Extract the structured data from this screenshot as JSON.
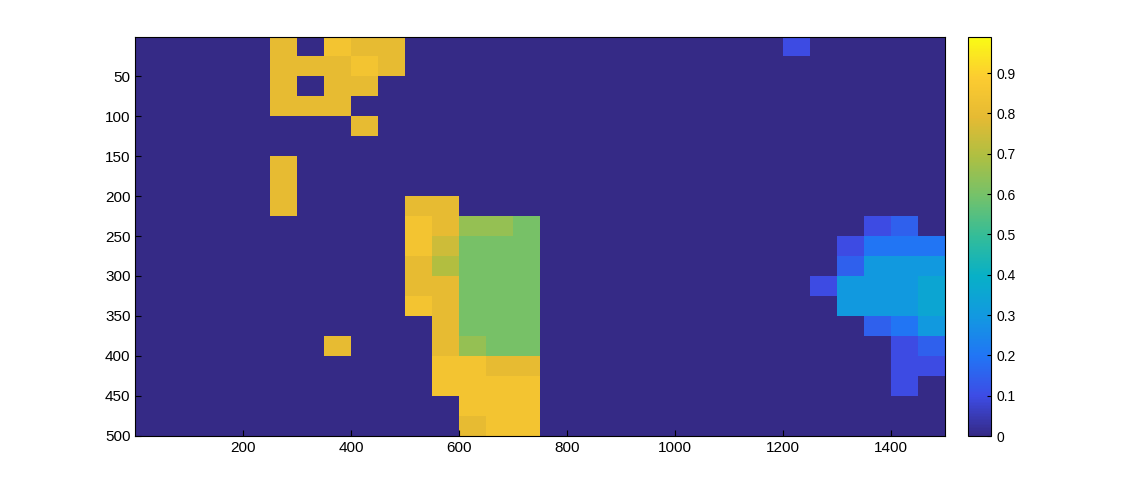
{
  "chart_data": {
    "type": "heatmap",
    "xlim": [
      0.5,
      1500.5
    ],
    "ylim": [
      500.5,
      0.5
    ],
    "xticks": [
      200,
      400,
      600,
      800,
      1000,
      1200,
      1400
    ],
    "yticks": [
      50,
      100,
      150,
      200,
      250,
      300,
      350,
      400,
      450,
      500
    ],
    "colorbar_range": [
      0,
      0.99
    ],
    "colorbar_ticks": [
      0,
      0.1,
      0.2,
      0.3,
      0.4,
      0.5,
      0.6,
      0.7,
      0.8,
      0.9
    ],
    "cells": [
      [
        0,
        0,
        0,
        0,
        0,
        0.8,
        0,
        0.85,
        0.8,
        0.8,
        0,
        0,
        0,
        0,
        0,
        0,
        0,
        0,
        0,
        0,
        0,
        0,
        0,
        0,
        0.1,
        0,
        0,
        0,
        0,
        0
      ],
      [
        0,
        0,
        0,
        0,
        0,
        0.8,
        0.8,
        0.8,
        0.85,
        0.8,
        0,
        0,
        0,
        0,
        0,
        0,
        0,
        0,
        0,
        0,
        0,
        0,
        0,
        0,
        0,
        0,
        0,
        0,
        0,
        0
      ],
      [
        0,
        0,
        0,
        0,
        0,
        0.8,
        0,
        0.8,
        0.8,
        0,
        0,
        0,
        0,
        0,
        0,
        0,
        0,
        0,
        0,
        0,
        0,
        0,
        0,
        0,
        0,
        0,
        0,
        0,
        0,
        0
      ],
      [
        0,
        0,
        0,
        0,
        0,
        0.8,
        0.8,
        0.8,
        0,
        0,
        0,
        0,
        0,
        0,
        0,
        0,
        0,
        0,
        0,
        0,
        0,
        0,
        0,
        0,
        0,
        0,
        0,
        0,
        0,
        0
      ],
      [
        0,
        0,
        0,
        0,
        0,
        0,
        0,
        0,
        0.8,
        0,
        0,
        0,
        0,
        0,
        0,
        0,
        0,
        0,
        0,
        0,
        0,
        0,
        0,
        0,
        0,
        0,
        0,
        0,
        0,
        0
      ],
      [
        0,
        0,
        0,
        0,
        0,
        0,
        0,
        0,
        0,
        0,
        0,
        0,
        0,
        0,
        0,
        0,
        0,
        0,
        0,
        0,
        0,
        0,
        0,
        0,
        0,
        0,
        0,
        0,
        0,
        0
      ],
      [
        0,
        0,
        0,
        0,
        0,
        0.8,
        0,
        0,
        0,
        0,
        0,
        0,
        0,
        0,
        0,
        0,
        0,
        0,
        0,
        0,
        0,
        0,
        0,
        0,
        0,
        0,
        0,
        0,
        0,
        0
      ],
      [
        0,
        0,
        0,
        0,
        0,
        0.8,
        0,
        0,
        0,
        0,
        0,
        0,
        0,
        0,
        0,
        0,
        0,
        0,
        0,
        0,
        0,
        0,
        0,
        0,
        0,
        0,
        0,
        0,
        0,
        0
      ],
      [
        0,
        0,
        0,
        0,
        0,
        0.8,
        0,
        0,
        0,
        0,
        0.8,
        0.8,
        0,
        0,
        0,
        0,
        0,
        0,
        0,
        0,
        0,
        0,
        0,
        0,
        0,
        0,
        0,
        0,
        0,
        0
      ],
      [
        0,
        0,
        0,
        0,
        0,
        0,
        0,
        0,
        0,
        0,
        0.85,
        0.8,
        0.65,
        0.65,
        0.6,
        0,
        0,
        0,
        0,
        0,
        0,
        0,
        0,
        0,
        0,
        0,
        0,
        0.1,
        0.15,
        0
      ],
      [
        0,
        0,
        0,
        0,
        0,
        0,
        0,
        0,
        0,
        0,
        0.85,
        0.75,
        0.6,
        0.6,
        0.6,
        0,
        0,
        0,
        0,
        0,
        0,
        0,
        0,
        0,
        0,
        0,
        0.1,
        0.2,
        0.2,
        0.2
      ],
      [
        0,
        0,
        0,
        0,
        0,
        0,
        0,
        0,
        0,
        0,
        0.8,
        0.7,
        0.6,
        0.6,
        0.6,
        0,
        0,
        0,
        0,
        0,
        0,
        0,
        0,
        0,
        0,
        0,
        0.15,
        0.3,
        0.3,
        0.3
      ],
      [
        0,
        0,
        0,
        0,
        0,
        0,
        0,
        0,
        0,
        0,
        0.8,
        0.8,
        0.6,
        0.6,
        0.6,
        0,
        0,
        0,
        0,
        0,
        0,
        0,
        0,
        0,
        0,
        0.1,
        0.3,
        0.3,
        0.3,
        0.35
      ],
      [
        0,
        0,
        0,
        0,
        0,
        0,
        0,
        0,
        0,
        0,
        0.85,
        0.8,
        0.6,
        0.6,
        0.6,
        0,
        0,
        0,
        0,
        0,
        0,
        0,
        0,
        0,
        0,
        0,
        0.3,
        0.3,
        0.3,
        0.35
      ],
      [
        0,
        0,
        0,
        0,
        0,
        0,
        0,
        0,
        0,
        0,
        0,
        0.8,
        0.6,
        0.6,
        0.6,
        0,
        0,
        0,
        0,
        0,
        0,
        0,
        0,
        0,
        0,
        0,
        0,
        0.15,
        0.2,
        0.3
      ],
      [
        0,
        0,
        0,
        0,
        0,
        0,
        0,
        0.8,
        0,
        0,
        0,
        0.8,
        0.65,
        0.6,
        0.6,
        0,
        0,
        0,
        0,
        0,
        0,
        0,
        0,
        0,
        0,
        0,
        0,
        0,
        0.1,
        0.15
      ],
      [
        0,
        0,
        0,
        0,
        0,
        0,
        0,
        0,
        0,
        0,
        0,
        0.85,
        0.85,
        0.8,
        0.8,
        0,
        0,
        0,
        0,
        0,
        0,
        0,
        0,
        0,
        0,
        0,
        0,
        0,
        0.1,
        0.1
      ],
      [
        0,
        0,
        0,
        0,
        0,
        0,
        0,
        0,
        0,
        0,
        0,
        0.85,
        0.85,
        0.85,
        0.85,
        0,
        0,
        0,
        0,
        0,
        0,
        0,
        0,
        0,
        0,
        0,
        0,
        0,
        0.1,
        0
      ],
      [
        0,
        0,
        0,
        0,
        0,
        0,
        0,
        0,
        0,
        0,
        0,
        0,
        0.85,
        0.85,
        0.85,
        0,
        0,
        0,
        0,
        0,
        0,
        0,
        0,
        0,
        0,
        0,
        0,
        0,
        0,
        0
      ],
      [
        0,
        0,
        0,
        0,
        0,
        0,
        0,
        0,
        0,
        0,
        0,
        0,
        0.8,
        0.85,
        0.85,
        0,
        0,
        0,
        0,
        0,
        0,
        0,
        0,
        0,
        0,
        0,
        0,
        0,
        0,
        0
      ]
    ]
  }
}
